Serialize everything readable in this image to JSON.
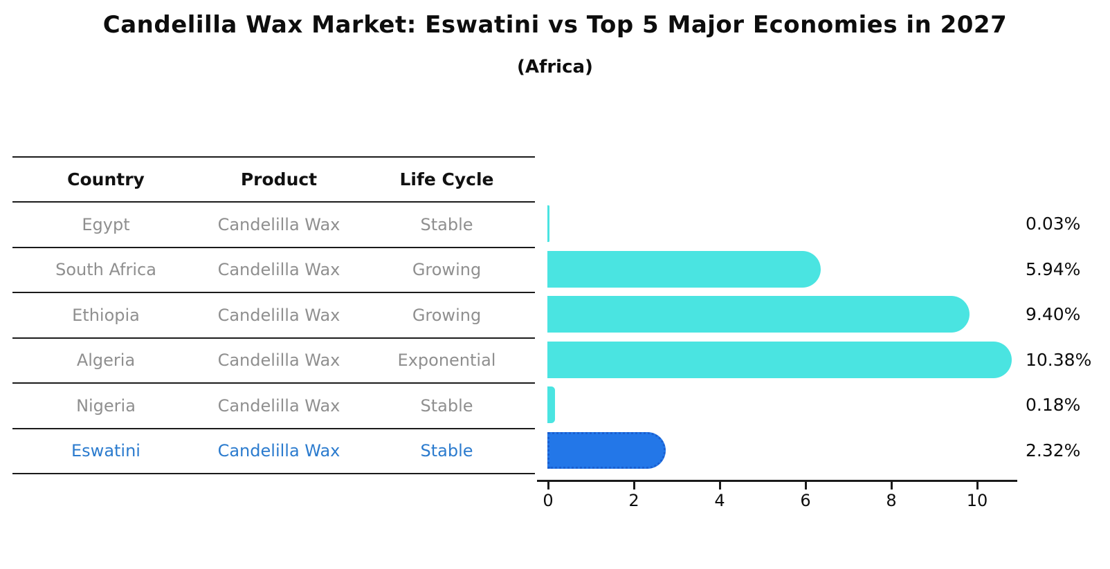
{
  "title": "Candelilla Wax Market: Eswatini vs Top 5 Major Economies in 2027",
  "subtitle": "(Africa)",
  "table": {
    "headers": [
      "Country",
      "Product",
      "Life Cycle"
    ],
    "rows": [
      {
        "country": "Egypt",
        "product": "Candelilla Wax",
        "life_cycle": "Stable",
        "highlight": false
      },
      {
        "country": "South Africa",
        "product": "Candelilla Wax",
        "life_cycle": "Growing",
        "highlight": false
      },
      {
        "country": "Ethiopia",
        "product": "Candelilla Wax",
        "life_cycle": "Growing",
        "highlight": false
      },
      {
        "country": "Algeria",
        "product": "Candelilla Wax",
        "life_cycle": "Exponential",
        "highlight": false
      },
      {
        "country": "Nigeria",
        "product": "Candelilla Wax",
        "life_cycle": "Stable",
        "highlight": false
      },
      {
        "country": "Eswatini",
        "product": "Candelilla Wax",
        "life_cycle": "Stable",
        "highlight": true
      }
    ]
  },
  "chart_data": {
    "type": "bar",
    "orientation": "horizontal",
    "title": "Candelilla Wax Market: Eswatini vs Top 5 Major Economies in 2027",
    "subtitle": "(Africa)",
    "categories": [
      "Egypt",
      "South Africa",
      "Ethiopia",
      "Algeria",
      "Nigeria",
      "Eswatini"
    ],
    "values": [
      0.03,
      5.94,
      9.4,
      10.38,
      0.18,
      2.32
    ],
    "value_labels": [
      "0.03%",
      "5.94%",
      "9.40%",
      "10.38%",
      "0.18%",
      "2.32%"
    ],
    "xlabel": "",
    "ylabel": "",
    "xlim": [
      0,
      11
    ],
    "x_ticks": [
      "0",
      "2",
      "4",
      "6",
      "8",
      "10"
    ],
    "grid": false,
    "legend": false,
    "highlight_index": 5,
    "colors": {
      "bar_default": "#4ae4e1",
      "bar_highlight": "#2377e8",
      "bar_highlight_border": "#1a5fd0",
      "highlight_text": "#2b7bce",
      "row_text": "#8f8f8f",
      "header_text": "#111111",
      "axis": "#1a1a1a"
    }
  }
}
